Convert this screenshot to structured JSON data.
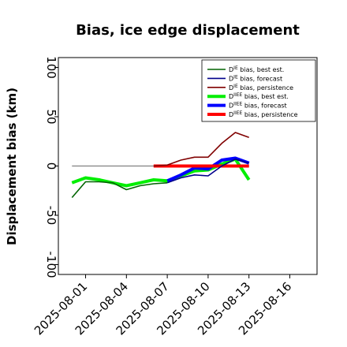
{
  "chart_data": {
    "type": "line",
    "title": "Bias, ice edge displacement",
    "xlabel": "",
    "ylabel": "Displacement bias (km)",
    "ylim": [
      -110,
      110
    ],
    "yticks": [
      100,
      50,
      0,
      -50,
      -100
    ],
    "xlim": [
      "2025-07-30",
      "2025-08-18"
    ],
    "xticks": [
      "2025-08-01",
      "2025-08-04",
      "2025-08-07",
      "2025-08-10",
      "2025-08-13",
      "2025-08-16"
    ],
    "highlighted_xtick": "2025-08-07",
    "highlight_color": "#228B22",
    "grid": false,
    "legend_position": "top-right",
    "reference_line": {
      "y": 0,
      "from": "2025-07-31",
      "to": "2025-08-13",
      "color": "#808080"
    },
    "series": [
      {
        "legend_main": "D",
        "legend_sup": "IE",
        "legend_rest": " bias, best est.",
        "color": "#006400",
        "width": 1.6,
        "x": [
          "2025-07-31",
          "2025-08-01",
          "2025-08-02",
          "2025-08-03",
          "2025-08-04",
          "2025-08-05",
          "2025-08-06",
          "2025-08-07"
        ],
        "y": [
          -32,
          -16,
          -16,
          -17,
          -24,
          -20,
          -18,
          -17
        ]
      },
      {
        "legend_main": "D",
        "legend_sup": "IE",
        "legend_rest": " bias, forecast",
        "color": "#00008B",
        "width": 1.6,
        "x": [
          "2025-08-07",
          "2025-08-08",
          "2025-08-09",
          "2025-08-10",
          "2025-08-11",
          "2025-08-12",
          "2025-08-13"
        ],
        "y": [
          -17,
          -12,
          -9,
          -10,
          0,
          7,
          3
        ]
      },
      {
        "legend_main": "D",
        "legend_sup": "IE",
        "legend_rest": " bias, persistence",
        "color": "#800000",
        "width": 1.6,
        "x": [
          "2025-08-06",
          "2025-08-07",
          "2025-08-08",
          "2025-08-09",
          "2025-08-10",
          "2025-08-11",
          "2025-08-12",
          "2025-08-13"
        ],
        "y": [
          0,
          1,
          6,
          9,
          9,
          23,
          34,
          29
        ]
      },
      {
        "legend_main": "D",
        "legend_sup": "IIEE",
        "legend_rest": " bias, best est.",
        "color": "#00EE00",
        "width": 4,
        "x": [
          "2025-07-31",
          "2025-08-01",
          "2025-08-02",
          "2025-08-03",
          "2025-08-04",
          "2025-08-05",
          "2025-08-06",
          "2025-08-07",
          "2025-08-08",
          "2025-08-09",
          "2025-08-10",
          "2025-08-11",
          "2025-08-12",
          "2025-08-13"
        ],
        "y": [
          -17,
          -12,
          -14,
          -17,
          -20,
          -17,
          -14,
          -15,
          -10,
          -5,
          -4,
          2,
          7,
          -14
        ]
      },
      {
        "legend_main": "D",
        "legend_sup": "IIEE",
        "legend_rest": " bias, forecast",
        "color": "#0000FF",
        "width": 4,
        "x": [
          "2025-08-07",
          "2025-08-08",
          "2025-08-09",
          "2025-08-10",
          "2025-08-11",
          "2025-08-12",
          "2025-08-13"
        ],
        "y": [
          -15,
          -9,
          -2,
          -3,
          6,
          8,
          3
        ]
      },
      {
        "legend_main": "D",
        "legend_sup": "IIEE",
        "legend_rest": " bias, persistence",
        "color": "#FF0000",
        "width": 4,
        "x": [
          "2025-08-06",
          "2025-08-07",
          "2025-08-08",
          "2025-08-09",
          "2025-08-10",
          "2025-08-11",
          "2025-08-12",
          "2025-08-13"
        ],
        "y": [
          0,
          0,
          0,
          0,
          0,
          0,
          0,
          0
        ]
      }
    ]
  }
}
